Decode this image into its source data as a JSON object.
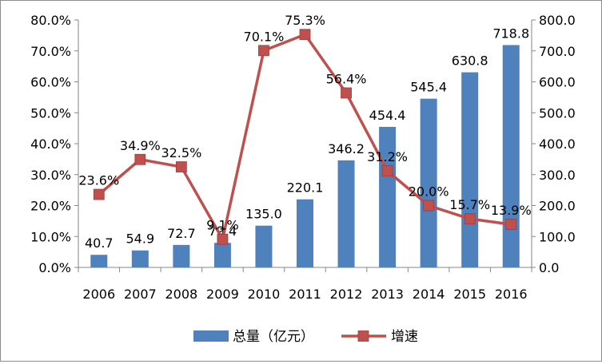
{
  "chart_data": {
    "type": "bar",
    "categories": [
      "2006",
      "2007",
      "2008",
      "2009",
      "2010",
      "2011",
      "2012",
      "2013",
      "2014",
      "2015",
      "2016"
    ],
    "series": [
      {
        "name": "总量（亿元）",
        "type": "bar",
        "axis": "right",
        "color": "#4f81bd",
        "values": [
          40.7,
          54.9,
          72.7,
          79.4,
          135.0,
          220.1,
          346.2,
          454.4,
          545.4,
          630.8,
          718.8
        ],
        "labels": [
          "40.7",
          "54.9",
          "72.7",
          "79.4",
          "135.0",
          "220.1",
          "346.2",
          "454.4",
          "545.4",
          "630.8",
          "718.8"
        ]
      },
      {
        "name": "增速",
        "type": "line",
        "axis": "left",
        "color": "#c0504d",
        "values": [
          23.6,
          34.9,
          32.5,
          9.1,
          70.1,
          75.3,
          56.4,
          31.2,
          20.0,
          15.7,
          13.9
        ],
        "labels": [
          "23.6%",
          "34.9%",
          "32.5%",
          "9.1%",
          "70.1%",
          "75.3%",
          "56.4%",
          "31.2%",
          "20.0%",
          "15.7%",
          "13.9%"
        ]
      }
    ],
    "y_left": {
      "ylim": [
        0,
        80
      ],
      "ticks": [
        "0.0%",
        "10.0%",
        "20.0%",
        "30.0%",
        "40.0%",
        "50.0%",
        "60.0%",
        "70.0%",
        "80.0%"
      ]
    },
    "y_right": {
      "ylim": [
        0,
        800
      ],
      "ticks": [
        "0.0",
        "100.0",
        "200.0",
        "300.0",
        "400.0",
        "500.0",
        "600.0",
        "700.0",
        "800.0"
      ]
    },
    "grid": false,
    "legend": "bottom"
  }
}
